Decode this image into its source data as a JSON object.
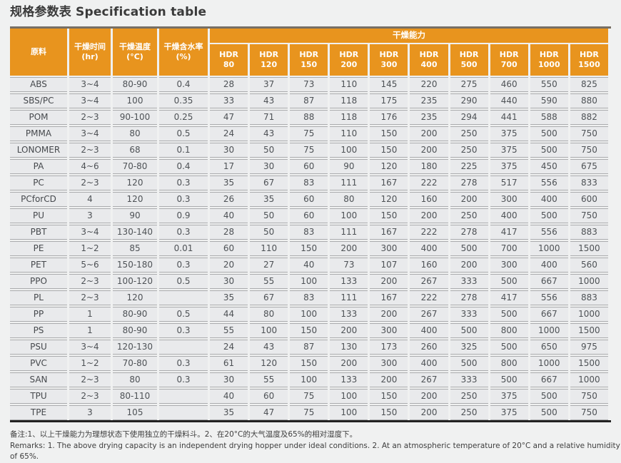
{
  "title": {
    "zh": "规格参数表",
    "en": "Specification table"
  },
  "colors": {
    "accent_orange": "#e8941e",
    "page_background": "#f0f1f1"
  },
  "table": {
    "header": {
      "material": "原料",
      "time_label": "干燥时间",
      "time_unit": "(hr)",
      "temp_label": "干燥温度",
      "temp_unit": "(°C)",
      "moisture_label": "干燥含水率",
      "moisture_unit": "(%)",
      "capacity_group": "干燥能力",
      "model_prefix": "HDR",
      "models": [
        "80",
        "120",
        "150",
        "200",
        "300",
        "400",
        "500",
        "700",
        "1000",
        "1500"
      ]
    },
    "rows": [
      {
        "material": "ABS",
        "time": "3~4",
        "temp": "80-90",
        "moisture": "0.4",
        "capacity": [
          28,
          37,
          73,
          110,
          145,
          220,
          275,
          460,
          550,
          825
        ]
      },
      {
        "material": "SBS/PC",
        "time": "3~4",
        "temp": "100",
        "moisture": "0.35",
        "capacity": [
          33,
          43,
          87,
          118,
          175,
          235,
          290,
          440,
          590,
          880
        ]
      },
      {
        "material": "POM",
        "time": "2~3",
        "temp": "90-100",
        "moisture": "0.25",
        "capacity": [
          47,
          71,
          88,
          118,
          176,
          235,
          294,
          441,
          588,
          882
        ]
      },
      {
        "material": "PMMA",
        "time": "3~4",
        "temp": "80",
        "moisture": "0.5",
        "capacity": [
          24,
          43,
          75,
          110,
          150,
          200,
          250,
          375,
          500,
          750
        ]
      },
      {
        "material": "LONOMER",
        "time": "2~3",
        "temp": "68",
        "moisture": "0.1",
        "capacity": [
          30,
          50,
          75,
          100,
          150,
          200,
          250,
          375,
          500,
          750
        ]
      },
      {
        "material": "PA",
        "time": "4~6",
        "temp": "70-80",
        "moisture": "0.4",
        "capacity": [
          17,
          30,
          60,
          90,
          120,
          180,
          225,
          375,
          450,
          675
        ]
      },
      {
        "material": "PC",
        "time": "2~3",
        "temp": "120",
        "moisture": "0.3",
        "capacity": [
          35,
          67,
          83,
          111,
          167,
          222,
          278,
          517,
          556,
          833
        ]
      },
      {
        "material": "PCforCD",
        "time": "4",
        "temp": "120",
        "moisture": "0.3",
        "capacity": [
          26,
          35,
          60,
          80,
          120,
          160,
          200,
          300,
          400,
          600
        ]
      },
      {
        "material": "PU",
        "time": "3",
        "temp": "90",
        "moisture": "0.9",
        "capacity": [
          40,
          50,
          60,
          100,
          150,
          200,
          250,
          400,
          500,
          750
        ]
      },
      {
        "material": "PBT",
        "time": "3~4",
        "temp": "130-140",
        "moisture": "0.3",
        "capacity": [
          28,
          50,
          83,
          111,
          167,
          222,
          278,
          417,
          556,
          883
        ]
      },
      {
        "material": "PE",
        "time": "1~2",
        "temp": "85",
        "moisture": "0.01",
        "capacity": [
          60,
          110,
          150,
          200,
          300,
          400,
          500,
          700,
          1000,
          1500
        ]
      },
      {
        "material": "PET",
        "time": "5~6",
        "temp": "150-180",
        "moisture": "0.3",
        "capacity": [
          20,
          27,
          40,
          73,
          107,
          160,
          200,
          300,
          400,
          560
        ]
      },
      {
        "material": "PPO",
        "time": "2~3",
        "temp": "100-120",
        "moisture": "0.5",
        "capacity": [
          30,
          55,
          100,
          133,
          200,
          267,
          333,
          500,
          667,
          1000
        ]
      },
      {
        "material": "PL",
        "time": "2~3",
        "temp": "120",
        "moisture": "",
        "capacity": [
          35,
          67,
          83,
          111,
          167,
          222,
          278,
          417,
          556,
          883
        ]
      },
      {
        "material": "PP",
        "time": "1",
        "temp": "80-90",
        "moisture": "0.5",
        "capacity": [
          44,
          80,
          100,
          133,
          200,
          267,
          333,
          500,
          667,
          1000
        ]
      },
      {
        "material": "PS",
        "time": "1",
        "temp": "80-90",
        "moisture": "0.3",
        "capacity": [
          55,
          100,
          150,
          200,
          300,
          400,
          500,
          800,
          1000,
          1500
        ]
      },
      {
        "material": "PSU",
        "time": "3~4",
        "temp": "120-130",
        "moisture": "",
        "capacity": [
          24,
          43,
          87,
          130,
          173,
          260,
          325,
          500,
          650,
          975
        ]
      },
      {
        "material": "PVC",
        "time": "1~2",
        "temp": "70-80",
        "moisture": "0.3",
        "capacity": [
          61,
          120,
          150,
          200,
          300,
          400,
          500,
          800,
          1000,
          1500
        ]
      },
      {
        "material": "SAN",
        "time": "2~3",
        "temp": "80",
        "moisture": "0.3",
        "capacity": [
          30,
          55,
          100,
          133,
          200,
          267,
          333,
          500,
          667,
          1000
        ]
      },
      {
        "material": "TPU",
        "time": "2~3",
        "temp": "80-110",
        "moisture": "",
        "capacity": [
          40,
          60,
          75,
          100,
          150,
          200,
          250,
          375,
          500,
          750
        ]
      },
      {
        "material": "TPE",
        "time": "3",
        "temp": "105",
        "moisture": "",
        "capacity": [
          35,
          47,
          75,
          100,
          150,
          200,
          250,
          375,
          500,
          750
        ]
      }
    ]
  },
  "footer": {
    "note_zh": "备注:1、以上干燥能力为理想状态下使用独立的干燥料斗。2、在20°C的大气温度及65%的相对湿度下。",
    "note_en": "Remarks: 1. The above drying capacity is an independent drying hopper under ideal conditions. 2. At an atmospheric temperature of 20°C and a relative humidity of 65%."
  }
}
